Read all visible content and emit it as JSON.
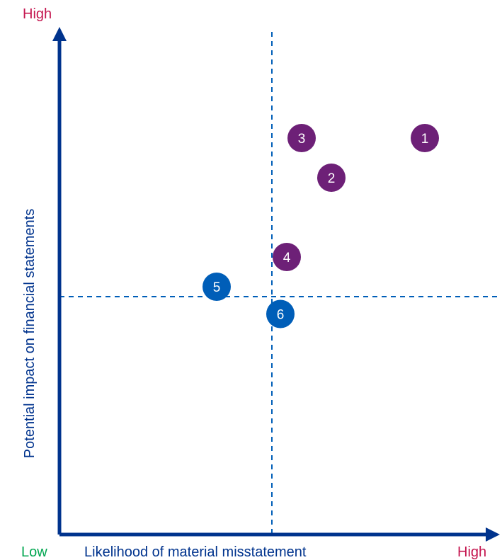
{
  "chart_data": {
    "type": "scatter",
    "xlabel": "Likelihood of material misstatement",
    "ylabel": "Potential impact on financial statements",
    "x_low_label": "Low",
    "x_high_label": "High",
    "y_high_label": "High",
    "xlim": [
      0,
      10
    ],
    "ylim": [
      0,
      10
    ],
    "x_divider": 5.0,
    "y_divider": 4.8,
    "points": [
      {
        "label": "1",
        "x": 8.6,
        "y": 8.0,
        "group": "purple"
      },
      {
        "label": "2",
        "x": 6.4,
        "y": 7.2,
        "group": "purple"
      },
      {
        "label": "3",
        "x": 5.7,
        "y": 8.0,
        "group": "purple"
      },
      {
        "label": "4",
        "x": 5.35,
        "y": 5.6,
        "group": "purple"
      },
      {
        "label": "5",
        "x": 3.7,
        "y": 5.0,
        "group": "blue"
      },
      {
        "label": "6",
        "x": 5.2,
        "y": 4.45,
        "group": "blue"
      }
    ],
    "colors": {
      "axis": "#00338d",
      "divider": "#005eb8",
      "purple": "#6d2077",
      "blue": "#005eb8",
      "low_label": "#00a650",
      "high_label": "#c4164f"
    }
  }
}
